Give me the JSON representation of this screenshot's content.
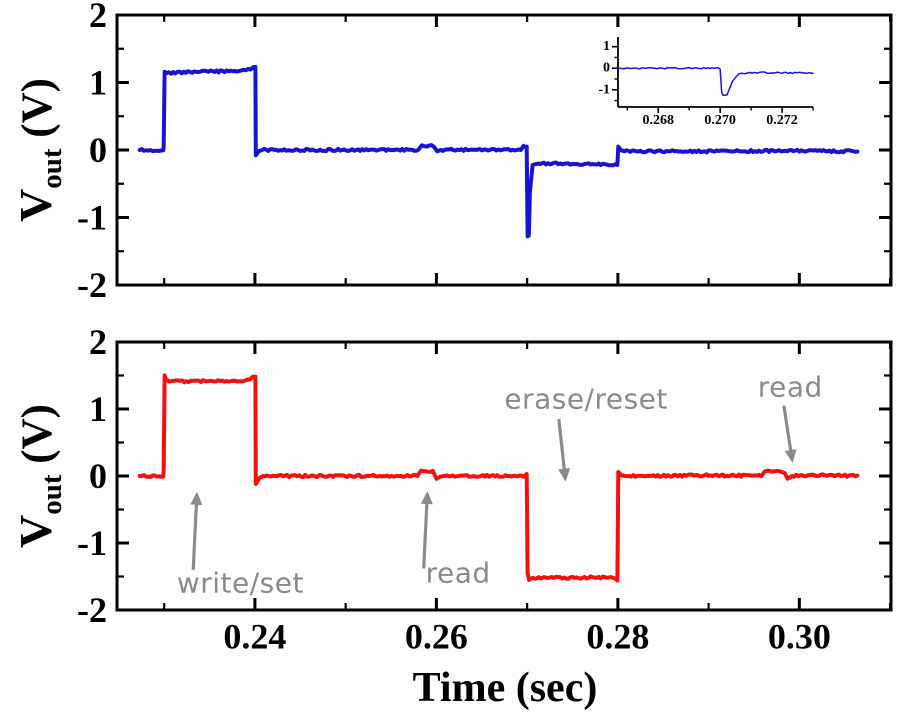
{
  "figure": {
    "xlabel": "Time (sec)",
    "ylabel": {
      "main": "V",
      "sub": "out",
      "unit": " (V)"
    },
    "colors": {
      "blue": "#1712d6",
      "red": "#f50f0f",
      "gray": "#8a8a8a",
      "axis": "#000000"
    }
  },
  "chart_data": [
    {
      "id": "top",
      "type": "line",
      "frame": "box",
      "title": "",
      "xlabel": "",
      "ylabel": "V_out (V)",
      "xlim": [
        0.2248,
        0.3101
      ],
      "ylim": [
        -2,
        2
      ],
      "x_ticks_major": [
        0.24,
        0.26,
        0.28,
        0.3
      ],
      "x_tick_labels": [],
      "x_ticks_minor": [
        0.23,
        0.25,
        0.27,
        0.29,
        0.31
      ],
      "y_ticks_major": [
        2,
        1,
        0,
        -1,
        -2
      ],
      "y_tick_labels": [
        "2",
        "1",
        "0",
        "-1",
        "-2"
      ],
      "y_ticks_minor": [
        1.5,
        0.5,
        -0.5,
        -1.5
      ],
      "series": [
        {
          "name": "Vout-top-blue",
          "color": "#1712d6",
          "points": [
            [
              0.2273,
              0
            ],
            [
              0.2299,
              0
            ],
            [
              0.22995,
              0.06
            ],
            [
              0.23005,
              1.16
            ],
            [
              0.2303,
              1.14
            ],
            [
              0.234,
              1.16
            ],
            [
              0.238,
              1.17
            ],
            [
              0.2395,
              1.19
            ],
            [
              0.23985,
              1.23
            ],
            [
              0.24005,
              1.23
            ],
            [
              0.2401,
              -0.08
            ],
            [
              0.2404,
              -0.02
            ],
            [
              0.2408,
              0
            ],
            [
              0.258,
              0
            ],
            [
              0.2584,
              0.07
            ],
            [
              0.2597,
              0.06
            ],
            [
              0.2601,
              -0.02
            ],
            [
              0.2605,
              0
            ],
            [
              0.2693,
              0
            ],
            [
              0.2696,
              0.06
            ],
            [
              0.26985,
              0.04
            ],
            [
              0.26995,
              0.05
            ],
            [
              0.27005,
              -1.28
            ],
            [
              0.27018,
              -1.27
            ],
            [
              0.2703,
              -0.62
            ],
            [
              0.2706,
              -0.22
            ],
            [
              0.2712,
              -0.2
            ],
            [
              0.279,
              -0.21
            ],
            [
              0.2797,
              -0.22
            ],
            [
              0.27995,
              -0.22
            ],
            [
              0.28005,
              0.05
            ],
            [
              0.2803,
              0
            ],
            [
              0.2807,
              -0.02
            ],
            [
              0.29,
              -0.02
            ],
            [
              0.3,
              -0.01
            ],
            [
              0.3064,
              -0.02
            ]
          ]
        }
      ]
    },
    {
      "id": "bottom",
      "type": "line",
      "frame": "box",
      "title": "",
      "xlabel": "Time (sec)",
      "ylabel": "V_out (V)",
      "xlim": [
        0.2248,
        0.3101
      ],
      "ylim": [
        -2,
        2
      ],
      "x_ticks_major": [
        0.24,
        0.26,
        0.28,
        0.3
      ],
      "x_tick_labels": [
        "0.24",
        "0.26",
        "0.28",
        "0.30"
      ],
      "x_ticks_minor": [
        0.23,
        0.25,
        0.27,
        0.29,
        0.31
      ],
      "y_ticks_major": [
        2,
        1,
        0,
        -1,
        -2
      ],
      "y_tick_labels": [
        "2",
        "1",
        "0",
        "-1",
        "-2"
      ],
      "y_ticks_minor": [
        1.5,
        0.5,
        -0.5,
        -1.5
      ],
      "series": [
        {
          "name": "Vout-bottom-red",
          "color": "#f50f0f",
          "points": [
            [
              0.2273,
              0
            ],
            [
              0.2299,
              0
            ],
            [
              0.22995,
              0.1
            ],
            [
              0.23005,
              1.5
            ],
            [
              0.2302,
              1.44
            ],
            [
              0.2306,
              1.41
            ],
            [
              0.235,
              1.42
            ],
            [
              0.2394,
              1.43
            ],
            [
              0.23975,
              1.48
            ],
            [
              0.24005,
              1.48
            ],
            [
              0.2401,
              -0.12
            ],
            [
              0.2405,
              -0.03
            ],
            [
              0.2409,
              0
            ],
            [
              0.2579,
              0
            ],
            [
              0.2583,
              0.08
            ],
            [
              0.2596,
              0.07
            ],
            [
              0.26,
              -0.04
            ],
            [
              0.2604,
              -0.01
            ],
            [
              0.2609,
              0
            ],
            [
              0.2696,
              0
            ],
            [
              0.26995,
              0.03
            ],
            [
              0.27005,
              -1.45
            ],
            [
              0.2702,
              -1.55
            ],
            [
              0.2706,
              -1.52
            ],
            [
              0.275,
              -1.52
            ],
            [
              0.2792,
              -1.51
            ],
            [
              0.2797,
              -1.53
            ],
            [
              0.27995,
              -1.56
            ],
            [
              0.28005,
              0.06
            ],
            [
              0.2804,
              0.01
            ],
            [
              0.2808,
              0
            ],
            [
              0.29,
              0.01
            ],
            [
              0.2958,
              0
            ],
            [
              0.2962,
              0.07
            ],
            [
              0.2978,
              0.08
            ],
            [
              0.2984,
              0.04
            ],
            [
              0.2987,
              -0.04
            ],
            [
              0.2992,
              0
            ],
            [
              0.303,
              0.01
            ],
            [
              0.3064,
              0
            ]
          ]
        }
      ]
    },
    {
      "id": "inset",
      "type": "line",
      "frame": "axes",
      "title": "",
      "xlabel": "",
      "ylabel": "",
      "xlim": [
        0.2667,
        0.273
      ],
      "ylim": [
        -1.8,
        1.45
      ],
      "x_ticks_major": [
        0.268,
        0.27,
        0.272
      ],
      "x_tick_labels": [
        "0.268",
        "0.270",
        "0.272"
      ],
      "x_ticks_minor": [
        0.267,
        0.269,
        0.271,
        0.273
      ],
      "y_ticks_major": [
        1,
        0,
        -1
      ],
      "y_tick_labels": [
        "1",
        "0",
        "-1"
      ],
      "y_ticks_minor": [
        0.5,
        -0.5,
        -1.5
      ],
      "series": [
        {
          "name": "Vout-inset-blue",
          "color": "#1712d6",
          "points": [
            [
              0.2667,
              0
            ],
            [
              0.2698,
              0
            ],
            [
              0.26993,
              0.03
            ],
            [
              0.27,
              -0.04
            ],
            [
              0.27005,
              -1.12
            ],
            [
              0.2701,
              -1.26
            ],
            [
              0.27022,
              -1.24
            ],
            [
              0.2704,
              -0.6
            ],
            [
              0.2706,
              -0.26
            ],
            [
              0.2711,
              -0.2
            ],
            [
              0.272,
              -0.21
            ],
            [
              0.273,
              -0.23
            ]
          ]
        }
      ]
    }
  ],
  "annotations": [
    {
      "panel": "bottom",
      "name": "write-set",
      "text": "write/set",
      "t": 0.2384,
      "v": -1.6,
      "arrow_from": [
        0.2332,
        -1.4
      ],
      "arrow_to": [
        0.2336,
        -0.28
      ]
    },
    {
      "panel": "bottom",
      "name": "read-1",
      "text": "read",
      "t": 0.2624,
      "v": -1.45,
      "arrow_from": [
        0.2586,
        -1.38
      ],
      "arrow_to": [
        0.259,
        -0.27
      ]
    },
    {
      "panel": "bottom",
      "name": "erase-reset",
      "text": "erase/reset",
      "t": 0.2765,
      "v": 1.15,
      "arrow_from": [
        0.2735,
        0.85
      ],
      "arrow_to": [
        0.2742,
        -0.04
      ]
    },
    {
      "panel": "bottom",
      "name": "read-2",
      "text": "read",
      "t": 0.299,
      "v": 1.33,
      "arrow_from": [
        0.2983,
        1.05
      ],
      "arrow_to": [
        0.2992,
        0.24
      ]
    }
  ]
}
